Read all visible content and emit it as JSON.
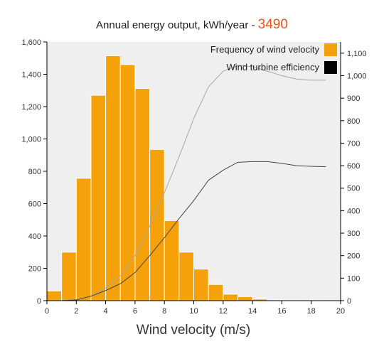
{
  "chart_data": {
    "type": "bar",
    "title": "Annual energy output, kWh/year - ",
    "title_value": "3490",
    "title_value_color": "#E8531E",
    "xlabel": "Wind velocity (m/s)",
    "x_range": [
      0,
      20
    ],
    "x_ticks": [
      "0",
      "2",
      "4",
      "6",
      "8",
      "10",
      "12",
      "14",
      "16",
      "18",
      "20"
    ],
    "y_left_range": [
      0,
      1600
    ],
    "y_left_ticks": [
      "0",
      "200",
      "400",
      "600",
      "800",
      "1,000",
      "1,200",
      "1,400",
      "1,600"
    ],
    "y_right_range": [
      0,
      1150
    ],
    "y_right_ticks": [
      "0",
      "100",
      "200",
      "300",
      "400",
      "500",
      "600",
      "700",
      "800",
      "900",
      "1,000",
      "1,100"
    ],
    "bar_color": "#F5A20A",
    "legend": [
      {
        "label": "Frequency of wind velocity",
        "color": "#F5A20A"
      },
      {
        "label": "Wind turbine efficiency",
        "color": "#000000"
      }
    ],
    "frequency": {
      "bin_start": [
        0,
        1,
        2,
        3,
        4,
        5,
        6,
        7,
        8,
        9,
        10,
        11,
        12,
        13,
        14,
        15,
        16,
        17,
        18
      ],
      "values": [
        60,
        300,
        757,
        1270,
        1515,
        1460,
        1312,
        935,
        495,
        300,
        195,
        100,
        40,
        25,
        10,
        5,
        2,
        1,
        1
      ]
    },
    "series": [
      {
        "axis": "right",
        "color": "#A8A8A8",
        "x": [
          0,
          1,
          2,
          3,
          4,
          5,
          6,
          7,
          8,
          9,
          10,
          11,
          12,
          13,
          14,
          15,
          16,
          17,
          18,
          19
        ],
        "values": [
          0,
          0,
          5,
          20,
          55,
          110,
          200,
          330,
          480,
          640,
          810,
          950,
          1020,
          1045,
          1040,
          1020,
          1000,
          985,
          980,
          980
        ]
      },
      {
        "axis": "right",
        "color": "#444444",
        "x": [
          0,
          1,
          2,
          3,
          4,
          5,
          6,
          7,
          8,
          9,
          10,
          11,
          12,
          13,
          14,
          15,
          16,
          17,
          18,
          19
        ],
        "values": [
          0,
          0,
          3,
          20,
          45,
          75,
          125,
          200,
          280,
          365,
          445,
          535,
          580,
          615,
          618,
          618,
          610,
          600,
          597,
          595
        ]
      }
    ]
  }
}
